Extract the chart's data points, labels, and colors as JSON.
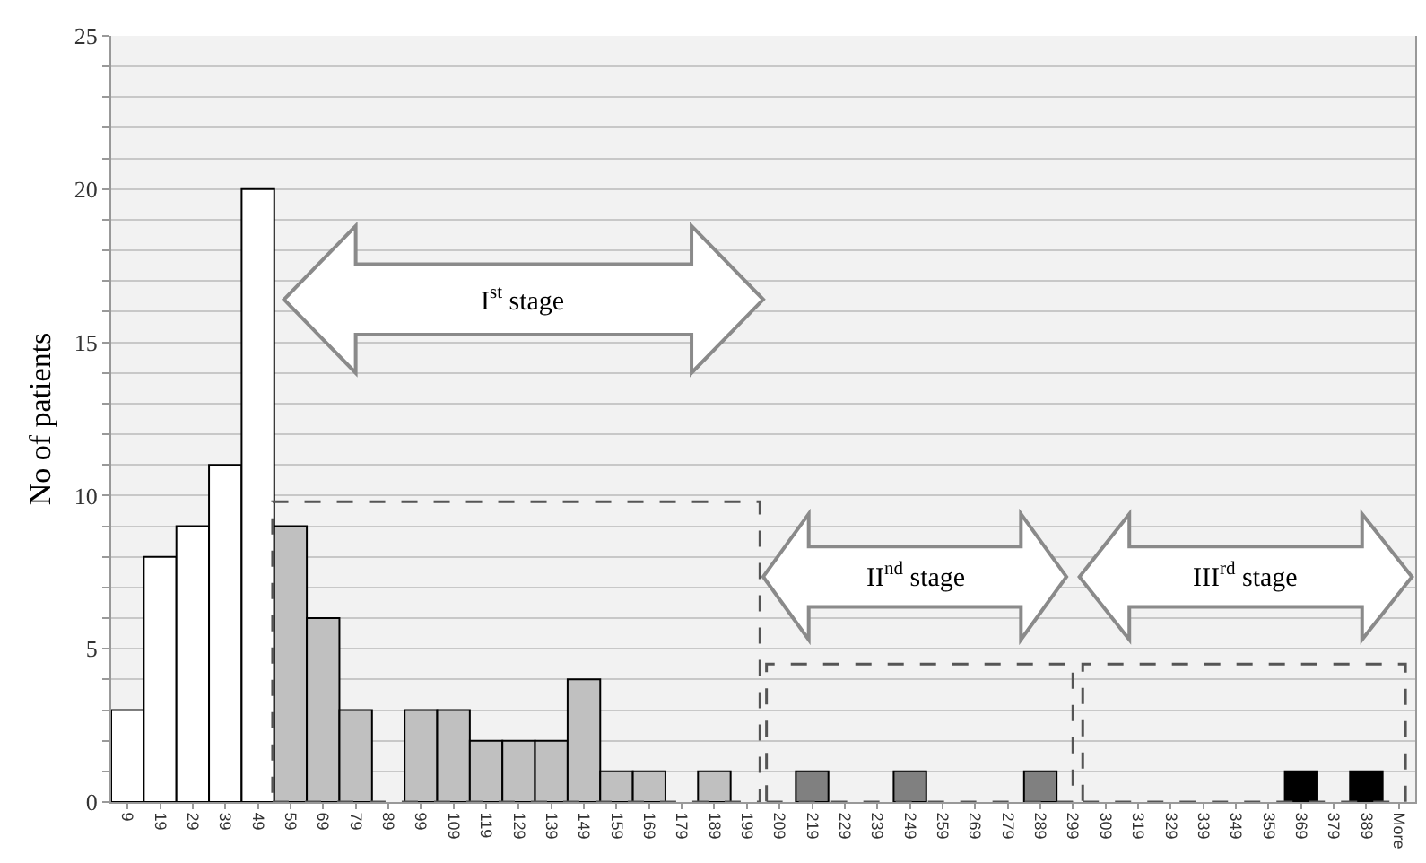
{
  "chart_data": {
    "type": "bar",
    "ylabel": "No of patients",
    "categories": [
      "9",
      "19",
      "29",
      "39",
      "49",
      "59",
      "69",
      "79",
      "89",
      "99",
      "109",
      "119",
      "129",
      "139",
      "149",
      "159",
      "169",
      "179",
      "189",
      "199",
      "209",
      "219",
      "229",
      "239",
      "249",
      "259",
      "269",
      "279",
      "289",
      "299",
      "309",
      "319",
      "329",
      "339",
      "349",
      "359",
      "369",
      "379",
      "389",
      "More"
    ],
    "values": [
      3,
      8,
      9,
      11,
      20,
      9,
      6,
      3,
      0,
      3,
      3,
      2,
      2,
      2,
      4,
      1,
      1,
      0,
      1,
      0,
      0,
      1,
      0,
      0,
      1,
      0,
      0,
      0,
      1,
      0,
      0,
      0,
      0,
      0,
      0,
      0,
      1,
      0,
      1,
      0
    ],
    "colors": [
      "#ffffff",
      "#ffffff",
      "#ffffff",
      "#ffffff",
      "#ffffff",
      "#c0c0c0",
      "#c0c0c0",
      "#c0c0c0",
      "#c0c0c0",
      "#c0c0c0",
      "#c0c0c0",
      "#c0c0c0",
      "#c0c0c0",
      "#c0c0c0",
      "#c0c0c0",
      "#c0c0c0",
      "#c0c0c0",
      "#c0c0c0",
      "#c0c0c0",
      "#c0c0c0",
      "#808080",
      "#808080",
      "#808080",
      "#808080",
      "#808080",
      "#808080",
      "#808080",
      "#808080",
      "#808080",
      "#808080",
      "#000000",
      "#000000",
      "#000000",
      "#000000",
      "#000000",
      "#000000",
      "#000000",
      "#000000",
      "#000000",
      "#000000"
    ],
    "ylim": [
      0,
      25
    ],
    "yticks": [
      0,
      {
        "value": 1,
        "label": null
      },
      {
        "value": 2,
        "label": null
      },
      {
        "value": 3,
        "label": null
      },
      {
        "value": 4,
        "label": null
      },
      5,
      {
        "value": 6,
        "label": null
      },
      {
        "value": 7,
        "label": null
      },
      {
        "value": 8,
        "label": null
      },
      {
        "value": 9,
        "label": null
      },
      10,
      {
        "value": 11,
        "label": null
      },
      {
        "value": 12,
        "label": null
      },
      {
        "value": 13,
        "label": null
      },
      {
        "value": 14,
        "label": null
      },
      15,
      {
        "value": 16,
        "label": null
      },
      {
        "value": 17,
        "label": null
      },
      {
        "value": 18,
        "label": null
      },
      {
        "value": 19,
        "label": null
      },
      20,
      {
        "value": 21,
        "label": null
      },
      {
        "value": 22,
        "label": null
      },
      {
        "value": 23,
        "label": null
      },
      {
        "value": 24,
        "label": null
      },
      25
    ],
    "grid": "y",
    "annotations": [
      "I$^{st}$ stage",
      "II$^{nd}$ stage",
      "III$^{rd}$ stage"
    ]
  }
}
